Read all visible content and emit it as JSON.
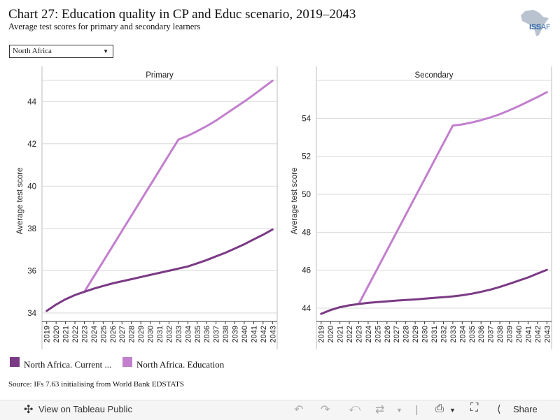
{
  "header": {
    "title": "Chart 27: Education quality in CP and Educ scenario, 2019–2043",
    "subtitle": "Average test scores for primary and secondary learners"
  },
  "logo": {
    "text_iss": "ISS",
    "text_rest": "AF"
  },
  "filter": {
    "selected": "North Africa"
  },
  "legend": [
    {
      "label": "North Africa. Current ...",
      "color": "#7b3a85"
    },
    {
      "label": "North Africa. Education",
      "color": "#c27fcd"
    }
  ],
  "source": "Source: IFs 7.63 initialising from World Bank EDSTATS",
  "toolbar": {
    "view_label": "View on Tableau Public",
    "share_label": "Share"
  },
  "colors": {
    "current": "#7b3a85",
    "education": "#c27fcd",
    "grid": "#d9d9d9"
  },
  "chart_data": [
    {
      "type": "line",
      "title": "Primary",
      "ylabel": "Average test score",
      "x": [
        2019,
        2020,
        2021,
        2022,
        2023,
        2024,
        2025,
        2026,
        2027,
        2028,
        2029,
        2030,
        2031,
        2032,
        2033,
        2034,
        2035,
        2036,
        2037,
        2038,
        2039,
        2040,
        2041,
        2042,
        2043
      ],
      "yticks": [
        34,
        36,
        38,
        40,
        42,
        44
      ],
      "ylim": [
        33.6,
        45
      ],
      "series": [
        {
          "name": "North Africa. Current ...",
          "values": [
            34.1,
            34.4,
            34.65,
            34.85,
            35.0,
            35.15,
            35.28,
            35.4,
            35.5,
            35.6,
            35.7,
            35.8,
            35.9,
            36.0,
            36.1,
            36.2,
            36.35,
            36.5,
            36.68,
            36.85,
            37.05,
            37.25,
            37.48,
            37.7,
            37.95
          ]
        }
      ]
    },
    {
      "type": "line",
      "title": "Secondary",
      "ylabel": "Average test score",
      "x": [
        2019,
        2020,
        2021,
        2022,
        2023,
        2024,
        2025,
        2026,
        2027,
        2028,
        2029,
        2030,
        2031,
        2032,
        2033,
        2034,
        2035,
        2036,
        2037,
        2038,
        2039,
        2040,
        2041,
        2042,
        2043
      ],
      "yticks": [
        44,
        46,
        48,
        50,
        52,
        54
      ],
      "ylim": [
        43.3,
        56
      ],
      "series": [
        {
          "name": "North Africa. Current ...",
          "values": [
            43.7,
            43.9,
            44.05,
            44.15,
            44.22,
            44.28,
            44.32,
            44.36,
            44.4,
            44.43,
            44.46,
            44.5,
            44.54,
            44.58,
            44.62,
            44.68,
            44.76,
            44.86,
            44.98,
            45.12,
            45.28,
            45.45,
            45.62,
            45.82,
            46.02
          ]
        }
      ]
    }
  ]
}
